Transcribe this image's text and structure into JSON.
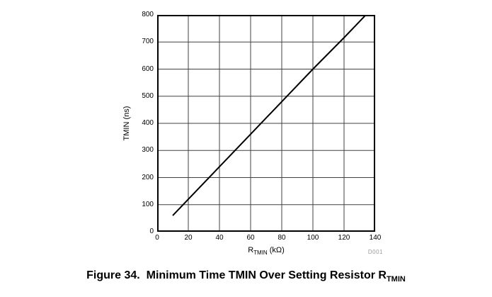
{
  "figure": {
    "caption": {
      "prefix": "Figure 34.  Minimum Time TMIN Over Setting Resistor R",
      "subscript": "TMIN"
    },
    "watermark": "D001"
  },
  "chart_data": {
    "type": "line",
    "title": "",
    "xlabel": {
      "prefix": "R",
      "subscript": "TMIN",
      "suffix": " (kΩ)"
    },
    "ylabel": "TMIN (ns)",
    "xlim": [
      0,
      140
    ],
    "ylim": [
      0,
      800
    ],
    "x_ticks": [
      0,
      20,
      40,
      60,
      80,
      100,
      120,
      140
    ],
    "y_ticks": [
      0,
      100,
      200,
      300,
      400,
      500,
      600,
      700,
      800
    ],
    "grid": true,
    "legend": false,
    "series": [
      {
        "name": "TMIN",
        "x": [
          10,
          20,
          40,
          60,
          80,
          100,
          120,
          134
        ],
        "y": [
          60,
          120,
          240,
          360,
          480,
          600,
          716,
          800
        ]
      }
    ],
    "colors": {
      "line": "#000000",
      "grid": "#404040",
      "frame": "#000000",
      "text": "#000000",
      "watermark": "#999999"
    }
  }
}
